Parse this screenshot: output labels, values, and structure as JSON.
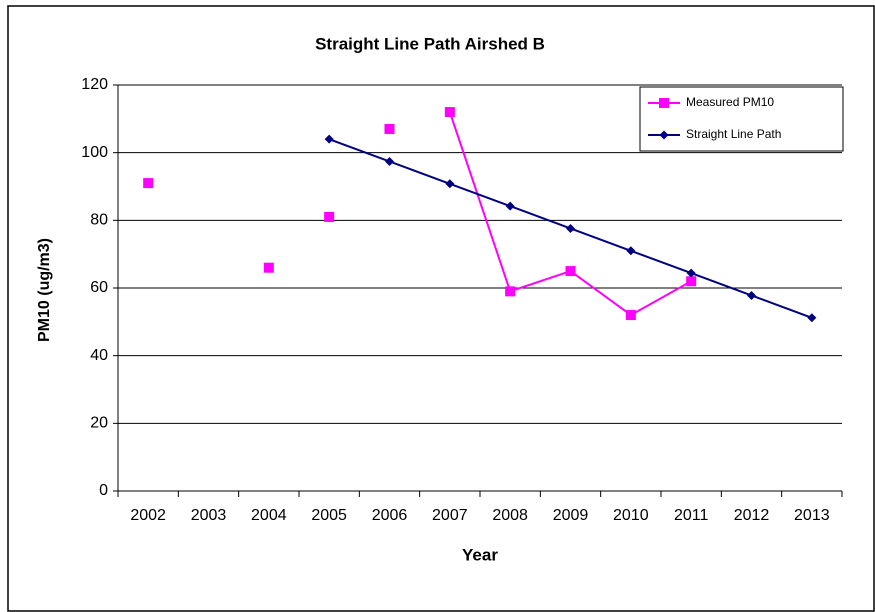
{
  "chart_data": {
    "type": "line",
    "title": "Straight Line Path Airshed B",
    "x_label": "Year",
    "y_label": "PM10 (ug/m3)",
    "categories": [
      "2002",
      "2003",
      "2004",
      "2005",
      "2006",
      "2007",
      "2008",
      "2009",
      "2010",
      "2011",
      "2012",
      "2013"
    ],
    "series": [
      {
        "name": "Measured PM10",
        "color": "#ff00ff",
        "marker": "square",
        "line": false,
        "values": [
          91,
          null,
          66,
          81,
          107,
          112,
          59,
          65,
          52,
          62,
          null,
          null
        ]
      },
      {
        "color": "#ff00ff",
        "marker": "none",
        "line": true,
        "values": [
          null,
          null,
          null,
          null,
          null,
          112,
          59,
          65,
          52,
          62,
          null,
          null
        ]
      },
      {
        "name": "Straight Line Path",
        "color": "#000080",
        "marker": "diamond",
        "line": true,
        "values": [
          null,
          null,
          null,
          104,
          97.4,
          90.8,
          84.2,
          77.6,
          71,
          64.4,
          57.8,
          51.2
        ]
      }
    ],
    "ylim": [
      0,
      120
    ],
    "yticks": [
      0,
      20,
      40,
      60,
      80,
      100,
      120
    ],
    "grid": true,
    "legend": "top-right"
  }
}
